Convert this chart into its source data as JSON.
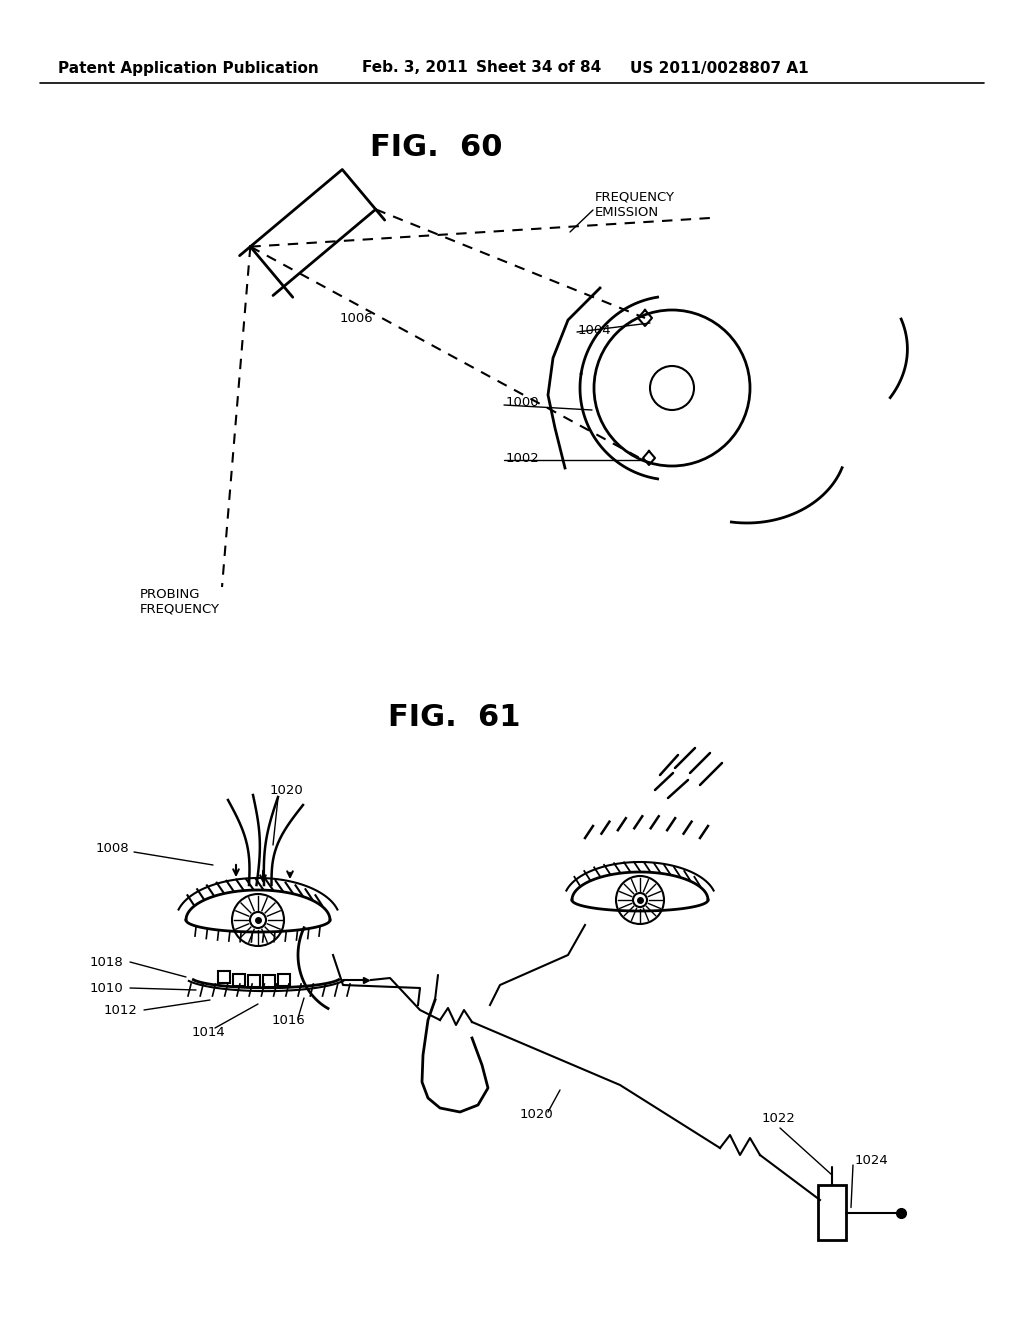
{
  "bg_color": "#ffffff",
  "header_text": "Patent Application Publication",
  "header_date": "Feb. 3, 2011",
  "header_sheet": "Sheet 34 of 84",
  "header_patent": "US 2011/0028807 A1",
  "fig60_title": "FIG.  60",
  "fig61_title": "FIG.  61",
  "label_frequency_emission": "FREQUENCY\nEMISSION",
  "label_probing_frequency": "PROBING\nFREQUENCY",
  "label_1000": "1000",
  "label_1002": "1002",
  "label_1004": "1004",
  "label_1006": "1006",
  "label_1008": "1008",
  "label_1010": "1010",
  "label_1012": "1012",
  "label_1014": "1014",
  "label_1016": "1016",
  "label_1018": "1018",
  "label_1020a": "1020",
  "label_1020b": "1020",
  "label_1022": "1022",
  "label_1024": "1024",
  "text_color": "#000000",
  "line_color": "#000000"
}
